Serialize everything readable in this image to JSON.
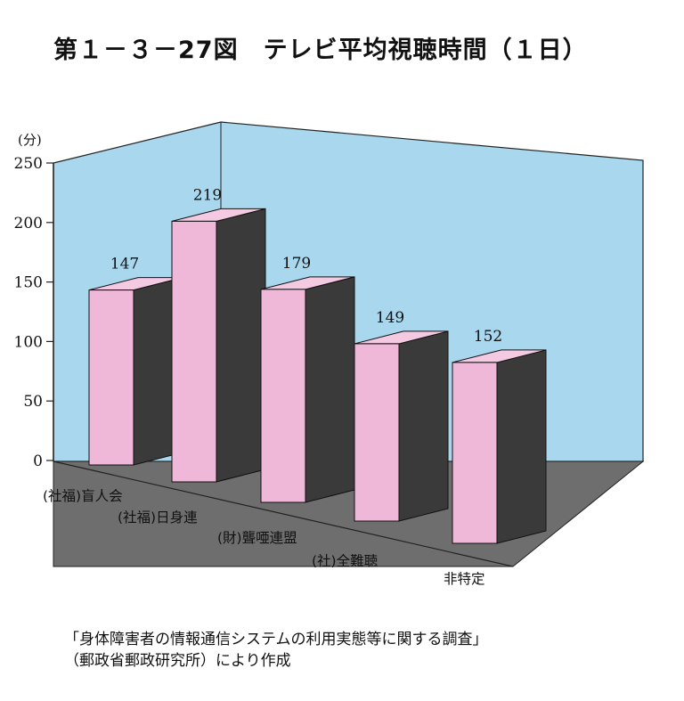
{
  "title": "第１－３－27図　テレビ平均視聴時間（１日）",
  "source": {
    "line1": "「身体障害者の情報通信システムの利用実態等に関する調査」",
    "line2": "（郵政省郵政研究所）により作成"
  },
  "colors": {
    "back_wall": "#a9d8ee",
    "floor": "#6e6e6e",
    "bar_front": "#f0b8d8",
    "bar_top": "#f4c9e2",
    "bar_side": "#3a3a3a"
  },
  "chart_data": {
    "type": "bar",
    "ylabel": "(分)",
    "ylim": [
      0,
      250
    ],
    "yticks": [
      0,
      50,
      100,
      150,
      200,
      250
    ],
    "categories": [
      "(社福)盲人会",
      "(社福)日身連",
      "(財)聾唖連盟",
      "(社)全難聴",
      "非特定"
    ],
    "values": [
      147,
      219,
      179,
      149,
      152
    ],
    "data_labels": [
      "147",
      "219",
      "179",
      "149",
      "152"
    ],
    "grid": false,
    "legend": "none"
  }
}
